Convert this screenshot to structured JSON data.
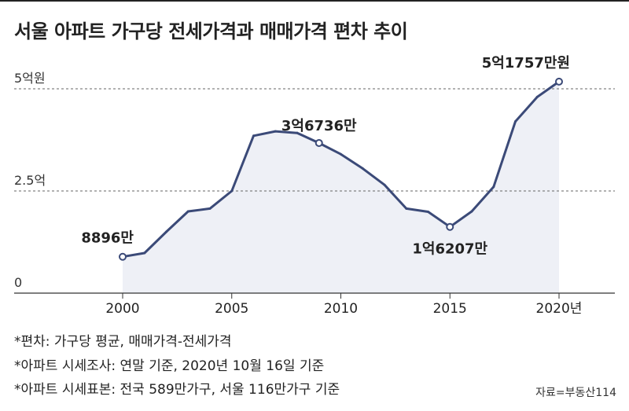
{
  "title": "서울 아파트 가구당 전세가격과 매매가격 편차 추이",
  "notes": [
    "*편차: 가구당 평균, 매매가격-전세가격",
    "*아파트 시세조사: 연말 기준, 2020년 10월 16일 기준",
    "*아파트 시세표본: 전국 589만가구, 서울 116만가구 기준"
  ],
  "source": "자료=부동산114",
  "colors": {
    "line": "#3b4a78",
    "area": "#eef0f6",
    "grid": "#666666"
  },
  "chart_data": {
    "type": "area",
    "title": "서울 아파트 가구당 전세가격과 매매가격 편차 추이",
    "unit": "억원",
    "x": [
      2000,
      2001,
      2002,
      2003,
      2004,
      2005,
      2006,
      2007,
      2008,
      2009,
      2010,
      2011,
      2012,
      2013,
      2014,
      2015,
      2016,
      2017,
      2018,
      2019,
      2020
    ],
    "values": [
      0.8896,
      0.98,
      1.5,
      2.0,
      2.07,
      2.5,
      3.85,
      3.96,
      3.92,
      3.6736,
      3.4,
      3.05,
      2.65,
      2.07,
      1.99,
      1.6207,
      2.0,
      2.6,
      4.2,
      4.8,
      5.1757
    ],
    "ylim": [
      0,
      5
    ],
    "yticks": [
      {
        "value": 0,
        "label": "0"
      },
      {
        "value": 2.5,
        "label": "2.5억"
      },
      {
        "value": 5,
        "label": "5억원"
      }
    ],
    "xticks": [
      {
        "value": 2000,
        "label": "2000"
      },
      {
        "value": 2005,
        "label": "2005"
      },
      {
        "value": 2010,
        "label": "2010"
      },
      {
        "value": 2015,
        "label": "2015"
      },
      {
        "value": 2020,
        "label": "2020년"
      }
    ],
    "grid": true,
    "annotations": [
      {
        "x": 2000,
        "label": "8896만",
        "placement": "above-left"
      },
      {
        "x": 2009,
        "label": "3억6736만",
        "placement": "above"
      },
      {
        "x": 2015,
        "label": "1억6207만",
        "placement": "below"
      },
      {
        "x": 2020,
        "label": "5억1757만원",
        "placement": "above-left"
      }
    ]
  }
}
